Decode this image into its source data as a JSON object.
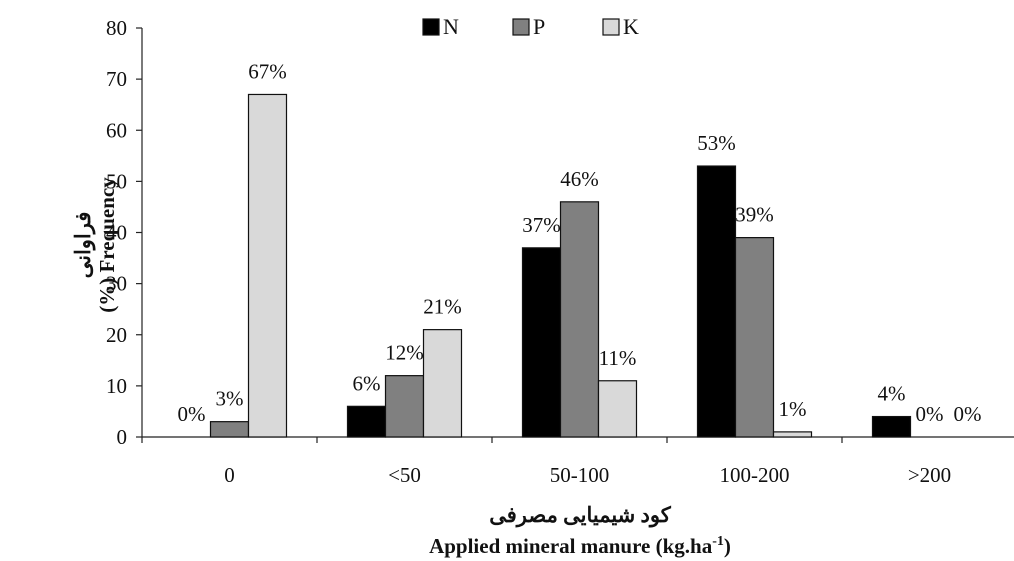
{
  "chart_data": {
    "type": "bar",
    "categories": [
      "0",
      "<50",
      "50-100",
      "100-200",
      ">200"
    ],
    "series": [
      {
        "name": "N",
        "values": [
          0,
          6,
          37,
          53,
          4
        ],
        "labels": [
          "0%",
          "6%",
          "37%",
          "53%",
          "4%"
        ],
        "color": "#000000"
      },
      {
        "name": "P",
        "values": [
          3,
          12,
          46,
          39,
          0
        ],
        "labels": [
          "3%",
          "12%",
          "46%",
          "39%",
          "0%"
        ],
        "color": "#808080"
      },
      {
        "name": "K",
        "values": [
          67,
          21,
          11,
          1,
          0
        ],
        "labels": [
          "67%",
          "21%",
          "11%",
          "1%",
          "0%"
        ],
        "color": "#d9d9d9"
      }
    ],
    "ylim": [
      0,
      80
    ],
    "yticks": [
      "0",
      "10",
      "20",
      "30",
      "40",
      "50",
      "60",
      "70",
      "80"
    ],
    "ylabel_fa": "فراوانی",
    "ylabel_en": "(%) Frequency",
    "xlabel_fa": "کود شیمیایی مصرفی",
    "xlabel_en": "Applied mineral manure (kg.ha",
    "xlabel_sup": "-1",
    "xlabel_end": ")",
    "legend_position": "top-center",
    "grid": false
  }
}
